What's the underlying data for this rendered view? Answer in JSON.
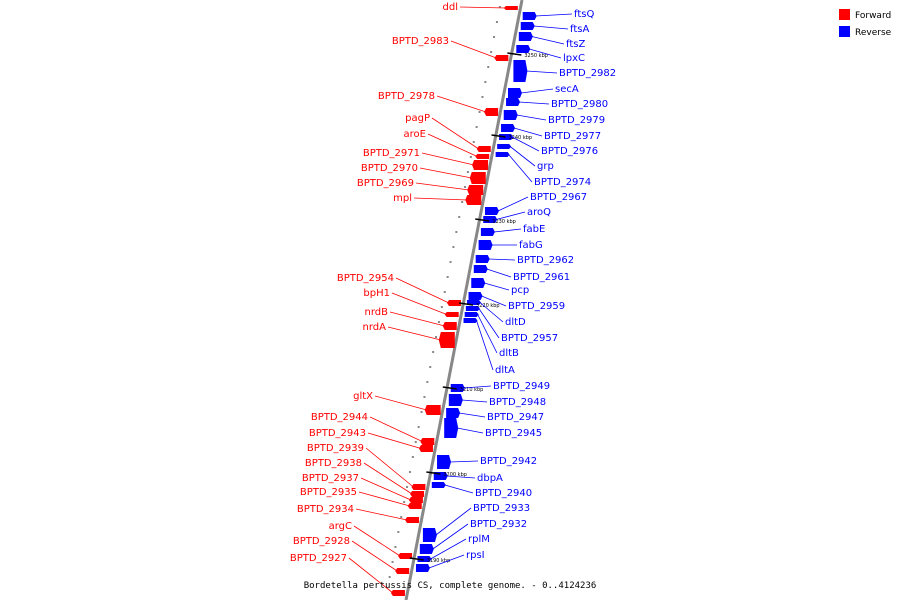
{
  "colors": {
    "forward": "#ff0000",
    "reverse": "#0000ff",
    "axis": "#808080"
  },
  "legend": {
    "forward_label": "Forward",
    "reverse_label": "Reverse"
  },
  "caption": "Bordetella pertussis CS, complete genome. - 0..4124236",
  "ticks": [
    "3250 kbp",
    "3240 kbp",
    "3230 kbp",
    "3220 kbp",
    "3210 kbp",
    "3200 kbp",
    "3190 kbp"
  ],
  "reverse_labels": [
    "ftsQ",
    "ftsA",
    "ftsZ",
    "lpxC",
    "BPTD_2982",
    "secA",
    "BPTD_2980",
    "BPTD_2979",
    "BPTD_2977",
    "BPTD_2976",
    "grp",
    "BPTD_2974",
    "BPTD_2967",
    "aroQ",
    "fabE",
    "fabG",
    "BPTD_2962",
    "BPTD_2961",
    "pcp",
    "BPTD_2959",
    "dltD",
    "BPTD_2957",
    "dltB",
    "dltA",
    "BPTD_2949",
    "BPTD_2948",
    "BPTD_2947",
    "BPTD_2945",
    "BPTD_2942",
    "dbpA",
    "BPTD_2940",
    "BPTD_2933",
    "BPTD_2932",
    "rplM",
    "rpsI"
  ],
  "forward_labels": [
    "ddl",
    "BPTD_2983",
    "BPTD_2978",
    "pagP",
    "aroE",
    "BPTD_2971",
    "BPTD_2970",
    "BPTD_2969",
    "mpl",
    "BPTD_2954",
    "bpH1",
    "nrdB",
    "nrdA",
    "gltX",
    "BPTD_2944",
    "BPTD_2943",
    "BPTD_2939",
    "BPTD_2938",
    "BPTD_2937",
    "BPTD_2935",
    "BPTD_2934",
    "argC",
    "BPTD_2928",
    "BPTD_2927"
  ]
}
